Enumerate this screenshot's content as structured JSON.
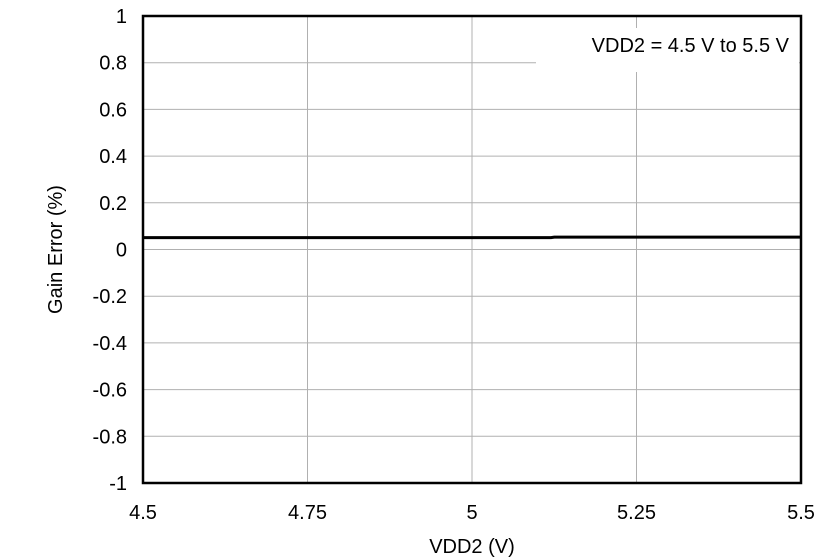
{
  "chart_data": {
    "type": "line",
    "xlabel": "VDD2 (V)",
    "ylabel": "Gain Error (%)",
    "xlim": [
      4.5,
      5.5
    ],
    "ylim": [
      -1,
      1
    ],
    "x_ticks": [
      4.5,
      4.75,
      5,
      5.25,
      5.5
    ],
    "x_tick_labels": [
      "4.5",
      "4.75",
      "5",
      "5.25",
      "5.5"
    ],
    "y_ticks": [
      1,
      0.8,
      0.6,
      0.4,
      0.2,
      0,
      -0.2,
      -0.4,
      -0.6,
      -0.8,
      -1
    ],
    "y_tick_labels": [
      "1",
      "0.8",
      "0.6",
      "0.4",
      "0.2",
      "0",
      "-0.2",
      "-0.4",
      "-0.6",
      "-0.8",
      "-1"
    ],
    "grid": true,
    "annotation": "VDD2 = 4.5 V to 5.5 V",
    "series": [
      {
        "x": [
          4.5,
          4.75,
          5.0,
          5.12,
          5.125,
          5.25,
          5.5
        ],
        "y": [
          0.051,
          0.051,
          0.051,
          0.051,
          0.053,
          0.053,
          0.053
        ],
        "color": "#000000"
      }
    ]
  }
}
